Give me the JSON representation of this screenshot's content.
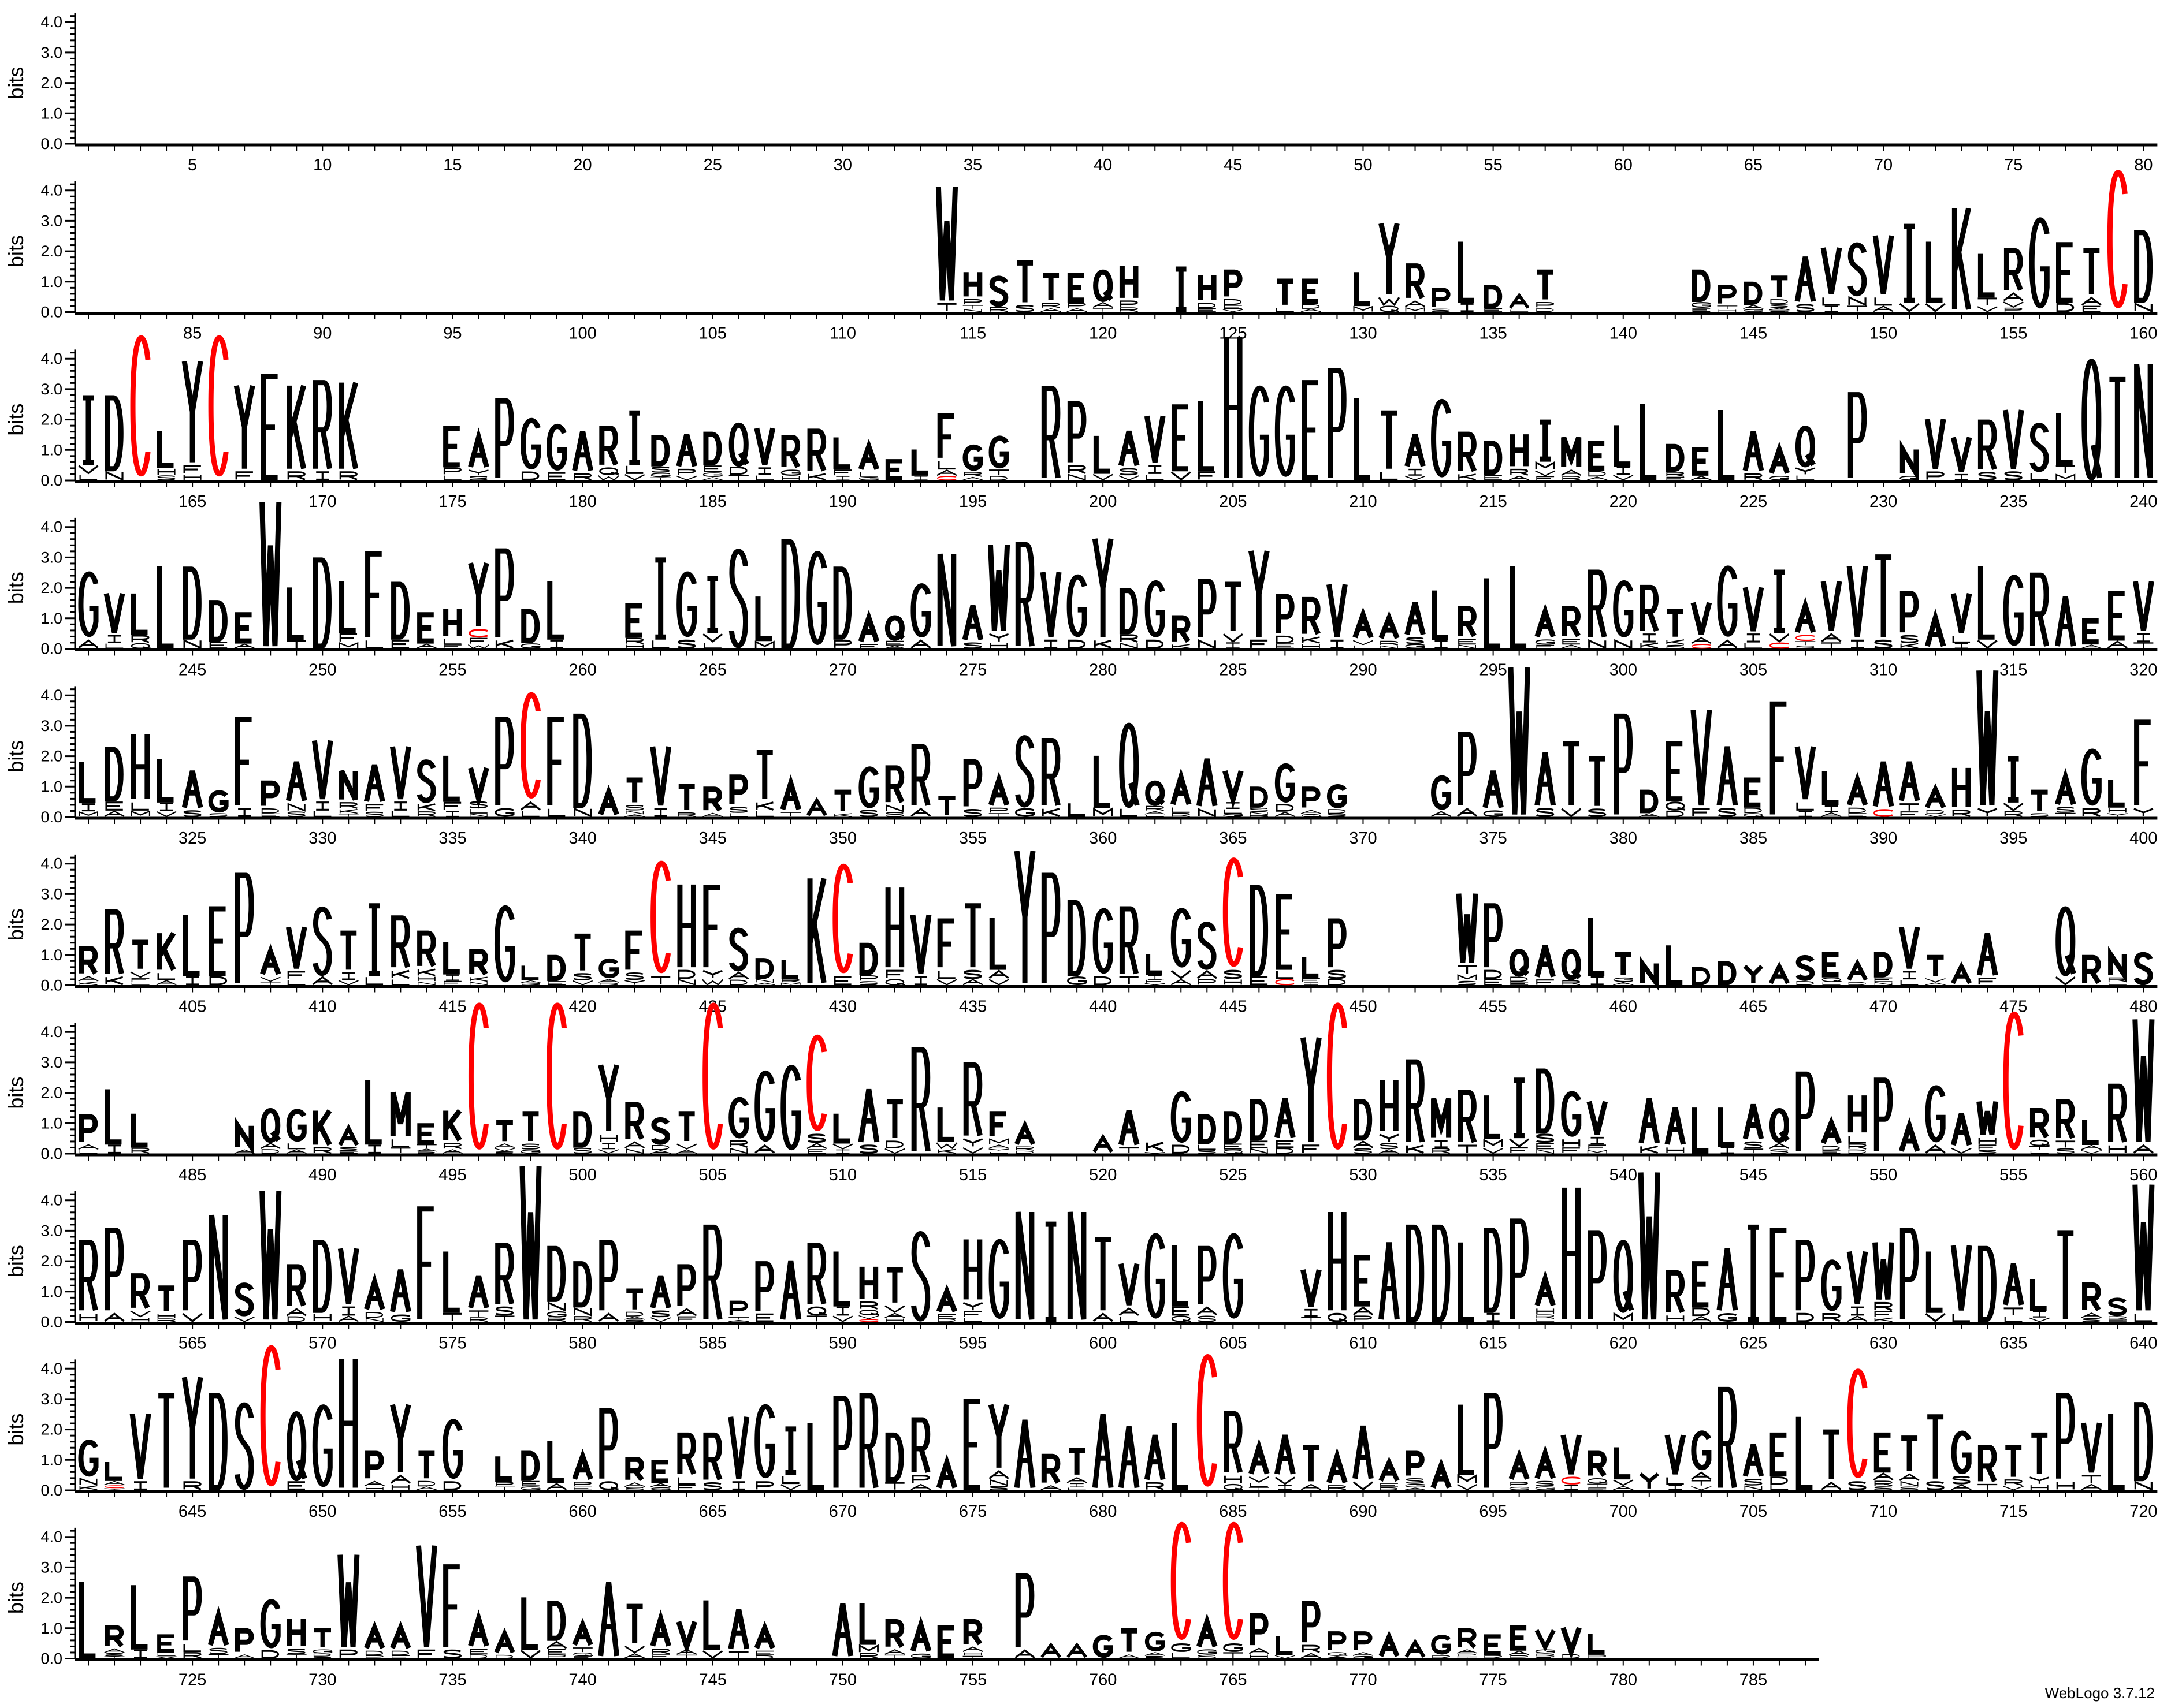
{
  "chart_data": {
    "type": "sequence-logo",
    "ylabel": "bits",
    "ylim": [
      0,
      4.3
    ],
    "y_ticks": [
      "0.0",
      "1.0",
      "2.0",
      "3.0",
      "4.0"
    ],
    "x_range": [
      1,
      787
    ],
    "positions_per_line": 80,
    "x_tick_every": 5,
    "colors": {
      "C": "#ff0000",
      "default": "#000000",
      "axis": "#000000"
    },
    "stack_format": "letters top-to-bottom, total bits",
    "stacks": {
      "114": "WT 4.2",
      "115": "HPTN 1.4",
      "116": "SR 1.2",
      "117": "TS 1.7",
      "118": "TRA 1.3",
      "119": "EPA 1.3",
      "120": "QAT 1.4",
      "121": "HPR 1.6",
      "123": "I 1.5",
      "124": "HDE 1.3",
      "125": "PDEV 1.4",
      "127": "TL 1.1",
      "128": "EDA 1.1",
      "130": "LM 1.4",
      "131": "YWQ 3.0",
      "132": "RAM 1.6",
      "133": "PS 0.8",
      "134": "LI 2.4",
      "135": "DE 0.9",
      "136": "AL 0.6",
      "137": "TPD 1.4",
      "143": "DGE 1.4",
      "144": "PTH 0.9",
      "145": "DAG 1.0",
      "146": "TDSAE 1.2",
      "147": "AS 1.9",
      "148": "VLI 2.2",
      "149": "SNT 2.3",
      "150": "VLA 2.6",
      "151": "IV 2.9",
      "152": "LV 2.4",
      "153": "K 3.5",
      "154": "LTV 2.0",
      "155": "RAVP 2.1",
      "156": "G 3.2",
      "157": "ED 2.3",
      "158": "TAE 2.1",
      "159": "C 4.8",
      "160": "DN 2.7",
      "161": "IVL 2.8",
      "162": "DN 2.8",
      "163": "C 4.9",
      "164": "LHS 1.7",
      "165": "YFH 4.0",
      "166": "C 4.9",
      "167": "YF 3.2",
      "168": "E 3.5",
      "169": "KR 3.2",
      "170": "RI 3.3",
      "171": "KR 3.3",
      "175": "EPL 1.8",
      "176": "AYS 1.5",
      "177": "P 2.7",
      "178": "GD 2.1",
      "179": "GE 1.9",
      "180": "AR 1.7",
      "181": "RQW 1.8",
      "182": "ILV 2.3",
      "183": "DSGT 1.5",
      "184": "APV 1.6",
      "185": "DEGA 1.6",
      "186": "QDT 1.9",
      "187": "VIL 1.8",
      "188": "RGH 1.5",
      "189": "RK 1.7",
      "190": "LFI 1.5",
      "191": "ALG 1.2",
      "192": "E 0.7",
      "193": "LI 1.1",
      "194": "FLAC 2.2",
      "195": "GRA 1.2",
      "196": "GTD 1.5",
      "198": "R 3.1",
      "199": "PRN 2.6",
      "200": "LV 1.55",
      "201": "ASV 1.7",
      "202": "VIL 2.2",
      "203": "EV 2.5",
      "204": "LF 2.7",
      "205": "H 4.8",
      "206": "G 3.2",
      "207": "G 3.2",
      "208": "E 3.3",
      "209": "P 3.7",
      "210": "L 2.8",
      "211": "TL 2.3",
      "212": "AIV 1.6",
      "213": "G 2.75",
      "214": "RK 1.6",
      "215": "DE 1.3",
      "216": "HRA 1.6",
      "217": "IMVF 2.0",
      "218": "MAR 1.5",
      "219": "EDA 1.3",
      "220": "LIV 1.9",
      "221": "L 2.6",
      "222": "DRE 1.2",
      "223": "EA 1.1",
      "224": "L 2.4",
      "225": "AR 1.7",
      "226": "AG 1.1",
      "227": "QYL 1.8",
      "229": "P 2.9",
      "231": "NG 1.1",
      "232": "VP 2.1",
      "233": "VI 1.5",
      "234": "RS 2.0",
      "235": "VS 2.4",
      "236": "SL 1.9",
      "237": "LTM 2.3",
      "238": "Q 4.0",
      "239": "T 3.4",
      "240": "N 3.9",
      "241": "GA 2.6",
      "242": "VIL 1.9",
      "243": "LRQ 1.9",
      "244": "L 2.8",
      "245": "DN 2.7",
      "246": "DE 1.6",
      "247": "EA 1.2",
      "248": "W 4.9",
      "249": "LT 2.1",
      "250": "D 3.0",
      "251": "LFM 2.3",
      "252": "FL 3.2",
      "253": "DE 2.2",
      "254": "EA 1.2",
      "255": "HLE 1.4",
      "256": "YCFW 2.9",
      "257": "PK 3.3",
      "258": "DG 1.3",
      "259": "LI 2.3",
      "262": "ERH 1.5",
      "263": "IL 3.0",
      "264": "GS 2.6",
      "265": "IVL 2.4",
      "266": "S 3.3",
      "267": "LM 1.8",
      "268": "D 3.6",
      "269": "G 3.3",
      "270": "DP 2.7",
      "271": "AE 1.1",
      "272": "QEA 1.1",
      "273": "GA 2.2",
      "274": "N 3.2",
      "275": "AS 1.5",
      "276": "WYH 3.5",
      "277": "R 3.5",
      "278": "VI 2.6",
      "279": "GD 2.5",
      "280": "YK 3.7",
      "281": "DRN 2.0",
      "282": "GD 2.3",
      "283": "RK 1.1",
      "284": "PN 2.3",
      "285": "TVI 2.2",
      "286": "YF 3.3",
      "287": "PDE 1.8",
      "288": "RKH 1.7",
      "289": "VI 2.2",
      "290": "AVL 1.2",
      "291": "ARN 1.1",
      "292": "ASG 1.6",
      "293": "LI 2.0",
      "294": "REN 1.4",
      "295": "L 2.4",
      "296": "L 2.8",
      "297": "AGE 1.3",
      "298": "REA 1.4",
      "299": "RN 2.6",
      "300": "GN 2.3",
      "301": "RIK 2.1",
      "302": "TKS 1.3",
      "303": "VAC 1.6",
      "304": "GA 2.8",
      "305": "VIL 2.1",
      "306": "IVC 2.6",
      "307": "ACTS 1.5",
      "308": "VAT 2.3",
      "309": "VI 2.8",
      "310": "TS 3.1",
      "311": "PSK 1.9",
      "312": "A 1.1",
      "313": "VLI 1.9",
      "314": "LV 2.8",
      "315": "G 2.5",
      "316": "R 2.5",
      "317": "A 1.8",
      "318": "EA 1.0",
      "319": "EA 1.9",
      "320": "VIT 2.3",
      "321": "LIM 1.9",
      "322": "DEA 2.3",
      "323": "HLM 2.8",
      "324": "LIV 2.0",
      "325": "AS 1.6",
      "326": "GS 0.9",
      "327": "FI 3.3",
      "328": "PDE 1.2",
      "329": "ANS 1.9",
      "330": "VIL 2.6",
      "331": "NRKT 1.6",
      "332": "AFS 1.8",
      "333": "VIL 2.4",
      "334": "SKR 1.9",
      "335": "LFI 2.1",
      "336": "VSLN 1.7",
      "337": "PG 3.3",
      "338": "CAL 4.2",
      "339": "FL 3.3",
      "340": "DN 3.4",
      "341": "A 0.9",
      "342": "TSNA 1.3",
      "343": "VI 2.4",
      "344": "TR 1.1",
      "345": "RA 1.0",
      "346": "PSL 1.4",
      "347": "TKL 2.2",
      "348": "AT 1.2",
      "349": "A 0.6",
      "350": "TK 0.9",
      "351": "GS 1.7",
      "352": "RNS 1.7",
      "353": "RA 2.4",
      "354": "T 0.7",
      "355": "PS 1.9",
      "356": "APT 1.3",
      "357": "SG 2.7",
      "358": "RK 2.6",
      "359": "L 0.5",
      "360": "LM 2.1",
      "361": "QL 3.1",
      "362": "QRAL 1.2",
      "363": "ALR 1.4",
      "364": "AN 2.0",
      "365": "VILG 1.6",
      "366": "DSNR 1.0",
      "367": "GDA 1.8",
      "368": "PAQ 1.0",
      "369": "GDS 1.1",
      "373": "GA 1.4",
      "374": "PA 2.8",
      "375": "AG 1.6",
      "376": "W 5.0",
      "377": "AS 2.2",
      "378": "TV 2.5",
      "379": "TS 2.0",
      "380": "P 3.4",
      "381": "DA 0.9",
      "382": "EQD 2.5",
      "383": "VF 3.6",
      "384": "AS 2.4",
      "385": "EDQ 1.3",
      "386": "F 3.8",
      "387": "VLI 2.4",
      "388": "LIA 1.6",
      "389": "ADE 1.3",
      "390": "AC 1.9",
      "391": "ATF 1.9",
      "392": "ADV 1.0",
      "393": "HR 1.7",
      "394": "WY 4.9",
      "395": "IVR 2.0",
      "396": "TS 0.9",
      "397": "AST 1.4",
      "398": "GR 2.3",
      "399": "LHY 1.3",
      "400": "FY 3.2",
      "401": "RAK 1.3",
      "402": "RK 2.5",
      "403": "TVFL 1.5",
      "404": "KLA 1.8",
      "405": "LI 2.4",
      "406": "ED 2.6",
      "407": "P 3.7",
      "408": "AVT 1.2",
      "409": "VFL 2.0",
      "410": "SA 2.6",
      "411": "TIV 1.8",
      "412": "IL 2.7",
      "413": "RKL 2.3",
      "414": "RKHN 1.8",
      "415": "LIF 1.5",
      "416": "RKN 1.2",
      "417": "G 2.7",
      "418": "LAK 0.7",
      "419": "DE 1.0",
      "420": "TSV 1.7",
      "421": "GAR 0.9",
      "422": "FSY 1.8",
      "423": "CT 4.2",
      "424": "HDN 3.4",
      "425": "FYW 3.3",
      "426": "SAD 1.9",
      "427": "DNA 0.9",
      "428": "LRM 0.9",
      "429": "K 3.6",
      "430": "CE 4.1",
      "431": "DPS 1.4",
      "432": "HFQ 3.3",
      "433": "VI 2.4",
      "434": "FLV 2.2",
      "435": "TSA 2.7",
      "436": "LAV 2.3",
      "437": "Y 4.5",
      "438": "P 3.7",
      "439": "DG 2.8",
      "440": "GD 2.6",
      "441": "RT 2.6",
      "442": "LIFV 1.1",
      "443": "GVA 2.6",
      "444": "SAP 2.1",
      "445": "CSH 4.3",
      "446": "DE 3.3",
      "447": "ELC 3.0",
      "448": "LFI 1.0",
      "449": "PSD 2.2",
      "454": "WTMS 3.1",
      "455": "PDE 2.7",
      "456": "QDE 1.2",
      "457": "AF 1.4",
      "458": "QR 1.2",
      "459": "LI 2.3",
      "460": "TGA 1.1",
      "461": "N 0.8",
      "462": "L 1.4",
      "463": "D 0.6",
      "464": "D 0.8",
      "465": "Y 0.7",
      "466": "A 0.7",
      "467": "SD 1.0",
      "468": "EQL 1.1",
      "469": "AD 0.8",
      "470": "DEN 1.1",
      "471": "VIL 2.0",
      "472": "TVA 1.0",
      "473": "A 0.7",
      "474": "AF 1.8",
      "477": "QV 2.6",
      "478": "R 1.0",
      "479": "NRL 1.1",
      "480": "S 1.1",
      "481": "PAL 1.3",
      "482": "LI 2.2",
      "483": "LR 1.4",
      "487": "NA 1.0",
      "488": "QAD 1.5",
      "489": "GLA 1.5",
      "490": "KR 1.5",
      "491": "ASE 0.9",
      "492": "LI 2.5",
      "493": "MLT 2.1",
      "494": "ETAD 1.0",
      "495": "KRA 1.5",
      "496": "C 5.1",
      "497": "TAVS 1.1",
      "498": "TSG 1.4",
      "499": "C 5.1",
      "500": "DS 1.4",
      "501": "YHIV 3.0",
      "502": "RAN 1.7",
      "503": "SDA 1.2",
      "504": "TVA 1.4",
      "505": "C 5.1",
      "506": "GRN 1.9",
      "507": "GA 2.8",
      "508": "G 3.0",
      "509": "CSAE 4.0",
      "510": "LVI 1.4",
      "511": "AS 2.2",
      "512": "TDV 1.8",
      "513": "R 3.5",
      "514": "LWK 1.6",
      "515": "RYV 3.0",
      "516": "FMAYL 1.4",
      "517": "ARD 1.0",
      "520": "A 0.6",
      "521": "AT 1.5",
      "522": "KV 0.4",
      "523": "GD 2.1",
      "524": "DLS 1.3",
      "525": "DEQ 1.4",
      "526": "DEN 1.8",
      "527": "AED 1.9",
      "528": "YF 3.9",
      "529": "C 5.1",
      "530": "DAS 1.8",
      "531": "HYSA 2.5",
      "532": "RK 3.1",
      "533": "MIR 1.9",
      "534": "RT 2.1",
      "535": "LMV 2.0",
      "536": "IVF 2.5",
      "537": "DSEN 2.8",
      "538": "GHF 2.1",
      "539": "VIFM 1.8",
      "541": "AK 1.9",
      "542": "AH 1.6",
      "543": "L 1.6",
      "544": "LI 1.6",
      "545": "AST 1.7",
      "546": "QAS 1.5",
      "547": "P 2.7",
      "548": "ADE 1.1",
      "549": "HLRD 2.0",
      "550": "P 2.5",
      "551": "A 1.0",
      "552": "GA 2.3",
      "553": "AV 1.4",
      "554": "WHFS 1.8",
      "555": "C 4.8",
      "556": "RQTL 1.5",
      "557": "RTS 1.8",
      "558": "LAV 1.2",
      "559": "RH 2.3",
      "560": "WA 4.5",
      "561": "RH 2.7",
      "562": "PA 3.1",
      "563": "RVH 1.6",
      "564": "THR 1.2",
      "565": "PV 2.7",
      "566": "N 3.6",
      "567": "SV 1.3",
      "568": "W 4.4",
      "569": "RAD 1.9",
      "570": "DH 2.7",
      "571": "VIA 2.5",
      "572": "ADN 1.4",
      "573": "AG 1.8",
      "574": "F 3.8",
      "575": "LT 2.4",
      "576": "ATR 1.6",
      "577": "RST 2.6",
      "578": "W 5.2",
      "579": "DNGR 2.5",
      "580": "DNR 2.0",
      "581": "PA 2.7",
      "582": "TDAS 1.1",
      "583": "ASV 1.6",
      "584": "PAF 1.9",
      "585": "R 3.2",
      "586": "PTA 0.7",
      "587": "PE 2.0",
      "588": "A 2.1",
      "589": "RQT 2.6",
      "590": "LIV 2.4",
      "591": "HRQVC 1.9",
      "592": "TVAH 1.8",
      "593": "S 3.0",
      "594": "AED 1.1",
      "595": "HYFL 2.8",
      "596": "G 2.8",
      "597": "N 3.7",
      "598": "I 3.3",
      "599": "N 3.7",
      "600": "TA 2.8",
      "601": "VAL 2.0",
      "602": "G 3.0",
      "603": "LEQ 2.6",
      "604": "PAS 2.5",
      "605": "G 3.0",
      "608": "VIT 1.8",
      "609": "HQ 3.7",
      "610": "EAP 2.2",
      "611": "A 2.7",
      "612": "D 3.2",
      "613": "D 3.2",
      "614": "L 2.7",
      "615": "DI 3.1",
      "616": "P 3.4",
      "617": "AHRL 1.5",
      "618": "H 4.5",
      "619": "P 3.0",
      "620": "QM 2.7",
      "621": "W 5.0",
      "622": "RH 1.7",
      "623": "EDA 2.0",
      "624": "AG 2.5",
      "625": "I 3.2",
      "626": "E 3.1",
      "627": "PD 2.7",
      "628": "GR 2.1",
      "629": "VIA 2.4",
      "630": "WRFK 2.7",
      "631": "P 3.1",
      "632": "LV 2.4",
      "633": "VL 2.6",
      "634": "D 2.5",
      "635": "ATL 2.0",
      "636": "LIV 1.5",
      "637": "T 3.0",
      "638": "RAS 1.3",
      "639": "SRE 0.8",
      "640": "WL 4.6",
      "641": "GNK 1.7",
      "642": "LACY 1.0",
      "643": "VI 2.6",
      "644": "T 3.2",
      "645": "YR 3.8",
      "646": "D 3.2",
      "647": "S 2.9",
      "648": "C 4.9",
      "649": "QE 2.6",
      "650": "G 2.9",
      "651": "H 4.4",
      "652": "PAH 1.3",
      "653": "YAH 2.9",
      "654": "TDA 1.3",
      "655": "GD 2.4",
      "657": "LPT 1.2",
      "658": "DEG 1.3",
      "659": "LA 1.7",
      "660": "APE 1.2",
      "661": "PQ 2.7",
      "662": "RAS 1.1",
      "663": "EAG 1.0",
      "664": "RLF 1.9",
      "665": "RS 1.9",
      "666": "VI 2.5",
      "667": "GP 2.9",
      "668": "ILV 2.1",
      "669": "L 2.3",
      "670": "P 3.1",
      "671": "R 3.2",
      "672": "DT 1.9",
      "673": "RPA 2.4",
      "674": "A 1.0",
      "675": "E 3.0",
      "676": "YANS 2.9",
      "677": "A 2.4",
      "678": "RA 1.2",
      "679": "TAIL 1.4",
      "680": "A 2.6",
      "681": "A 2.2",
      "682": "AR 1.9",
      "683": "L 2.3",
      "684": "C 4.6",
      "685": "RHQ 2.6",
      "686": "AVLT 1.5",
      "687": "AVI 1.9",
      "688": "TA 1.5",
      "689": "AR 1.2",
      "690": "AV 2.2",
      "691": "AED 1.0",
      "692": "PSGA 1.3",
      "693": "A 0.9",
      "694": "LMV 2.9",
      "695": "P 3.2",
      "696": "APG 1.2",
      "697": "ASG 1.3",
      "698": "VCI 1.9",
      "699": "RQTE 1.3",
      "700": "LVA 1.5",
      "701": "Y 0.6",
      "702": "VLI 1.9",
      "703": "GATV 2.0",
      "704": "R 3.4",
      "705": "ASN 1.6",
      "706": "EDL 1.9",
      "707": "L 2.5",
      "708": "TA 2.0",
      "709": "CS 4.1",
      "710": "EARS 1.9",
      "711": "TANS 1.8",
      "712": "TS 2.5",
      "713": "GSA 2.0",
      "714": "RT 1.5",
      "715": "TRV 1.5",
      "716": "TYH 1.9",
      "717": "PH 3.2",
      "718": "VTA 2.3",
      "719": "L 2.6",
      "720": "DN 2.9",
      "721": "L 2.6",
      "722": "RAST 1.1",
      "723": "LI 2.5",
      "724": "ELV 0.8",
      "725": "PLR 2.7",
      "726": "AST 1.5",
      "727": "PA 1.0",
      "728": "GD 2.0",
      "729": "HST 1.4",
      "730": "TGDS 1.0",
      "731": "WP 3.5",
      "732": "ADP 1.1",
      "733": "ADE 1.1",
      "734": "VF 3.8",
      "735": "FS 3.1",
      "736": "AED 1.4",
      "737": "AD 0.9",
      "738": "LV 2.1",
      "739": "DAEP 1.9",
      "740": "ATQE 1.2",
      "741": "A 2.6",
      "742": "TVA 1.8",
      "743": "ARE 1.4",
      "744": "VAT 1.3",
      "745": "LV 2.0",
      "746": "AT 1.7",
      "747": "AED 1.1",
      "750": "A 1.9",
      "751": "LMR 1.9",
      "752": "RAT 1.3",
      "753": "AG 1.2",
      "754": "E 1.1",
      "755": "RAHT 1.3",
      "757": "PA 2.8",
      "758": "A 0.5",
      "759": "A 0.5",
      "760": "G 0.8",
      "761": "TA 1.0",
      "762": "GAP 0.9",
      "763": "CGL 4.6",
      "764": "AGS 1.3",
      "765": "CGT 4.6",
      "766": "PAH 1.5",
      "767": "LV 0.8",
      "768": "PRA 1.9",
      "769": "PQA 0.9",
      "770": "PAG 0.9",
      "771": "A 0.8",
      "772": "A 0.6",
      "773": "GR 0.8",
      "774": "RAPT 1.0",
      "775": "ER 0.8",
      "776": "EAP 1.1",
      "777": "VGRE 1.0",
      "778": "VD 1.1",
      "779": "LP 0.9"
    }
  },
  "footer": {
    "credit": "WebLogo 3.7.12"
  }
}
